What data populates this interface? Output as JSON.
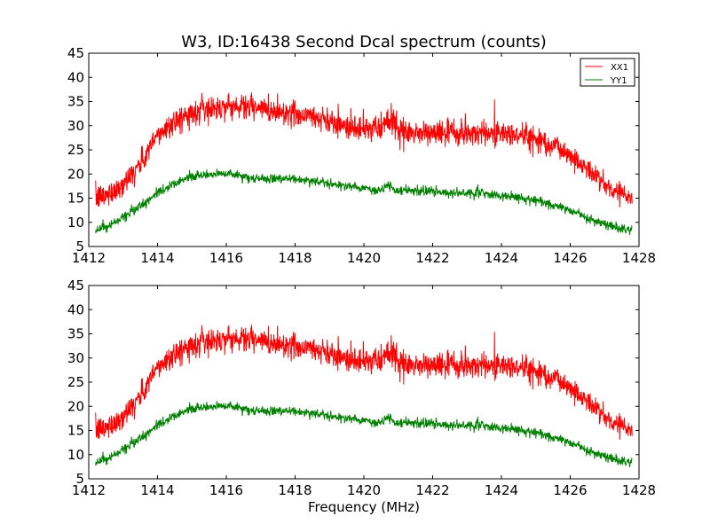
{
  "chart_data": [
    {
      "type": "line",
      "title": "W3, ID:16438 Second Dcal spectrum (counts)",
      "xlabel": "",
      "ylabel": "",
      "xlim": [
        1412,
        1428
      ],
      "ylim": [
        5,
        45
      ],
      "xticks": [
        1412,
        1414,
        1416,
        1418,
        1420,
        1422,
        1424,
        1426,
        1428
      ],
      "yticks": [
        5,
        10,
        15,
        20,
        25,
        30,
        35,
        40,
        45
      ],
      "legend": {
        "placement": "top-right",
        "show": true
      },
      "grid": false,
      "x": [
        1412.2,
        1412.5,
        1413.0,
        1413.5,
        1414.0,
        1414.5,
        1415.0,
        1415.5,
        1416.0,
        1416.5,
        1417.0,
        1417.5,
        1418.0,
        1418.5,
        1419.0,
        1419.5,
        1420.0,
        1420.5,
        1420.7,
        1421.0,
        1421.5,
        1422.0,
        1422.5,
        1423.0,
        1423.5,
        1424.0,
        1424.5,
        1425.0,
        1425.5,
        1426.0,
        1426.5,
        1427.0,
        1427.5,
        1427.8
      ],
      "series": [
        {
          "name": "XX1",
          "color": "#ff0000",
          "values": [
            15,
            15.5,
            18,
            22,
            28,
            31,
            32.5,
            33.5,
            34,
            34,
            33.5,
            33,
            32.5,
            32,
            31,
            30,
            29.5,
            29,
            32,
            28.5,
            28.5,
            28.5,
            28.5,
            28.5,
            28.5,
            28.5,
            28,
            27.5,
            26,
            24,
            21,
            18,
            16,
            15
          ],
          "noise": 2.4
        },
        {
          "name": "YY1",
          "color": "#008000",
          "values": [
            8.5,
            9,
            11,
            13.5,
            16,
            18,
            19.5,
            20,
            20,
            19.5,
            19,
            19,
            19,
            18.5,
            18,
            17.5,
            17,
            16.5,
            18,
            16.5,
            16.5,
            16.5,
            16,
            16,
            16,
            15.5,
            15,
            14.5,
            13.5,
            12.5,
            11,
            9.5,
            8.5,
            8.5
          ],
          "noise": 0.9
        }
      ]
    },
    {
      "type": "line",
      "title": "",
      "xlabel": "Frequency (MHz)",
      "ylabel": "",
      "xlim": [
        1412,
        1428
      ],
      "ylim": [
        5,
        45
      ],
      "xticks": [
        1412,
        1414,
        1416,
        1418,
        1420,
        1422,
        1424,
        1426,
        1428
      ],
      "yticks": [
        5,
        10,
        15,
        20,
        25,
        30,
        35,
        40,
        45
      ],
      "legend": {
        "show": false
      },
      "grid": false,
      "x": [
        1412.2,
        1412.5,
        1413.0,
        1413.5,
        1414.0,
        1414.5,
        1415.0,
        1415.5,
        1416.0,
        1416.5,
        1417.0,
        1417.5,
        1418.0,
        1418.5,
        1419.0,
        1419.5,
        1420.0,
        1420.5,
        1420.7,
        1421.0,
        1421.5,
        1422.0,
        1422.5,
        1423.0,
        1423.5,
        1424.0,
        1424.5,
        1425.0,
        1425.5,
        1426.0,
        1426.5,
        1427.0,
        1427.5,
        1427.8
      ],
      "series": [
        {
          "name": "XX1",
          "color": "#ff0000",
          "values": [
            15,
            15.5,
            18,
            22,
            28,
            31,
            32.5,
            33.5,
            34,
            34,
            33.5,
            33,
            32.5,
            32,
            31,
            30,
            29.5,
            29,
            32,
            28.5,
            28.5,
            28.5,
            28.5,
            28.5,
            28.5,
            28.5,
            28,
            27.5,
            26,
            24,
            21,
            18,
            16,
            15
          ],
          "noise": 2.4
        },
        {
          "name": "YY1",
          "color": "#008000",
          "values": [
            8.5,
            9,
            11,
            13.5,
            16,
            18,
            19.5,
            20,
            20,
            19.5,
            19,
            19,
            19,
            18.5,
            18,
            17.5,
            17,
            16.5,
            18,
            16.5,
            16.5,
            16.5,
            16,
            16,
            16,
            15.5,
            15,
            14.5,
            13.5,
            12.5,
            11,
            9.5,
            8.5,
            8.5
          ],
          "noise": 0.9
        }
      ]
    }
  ]
}
